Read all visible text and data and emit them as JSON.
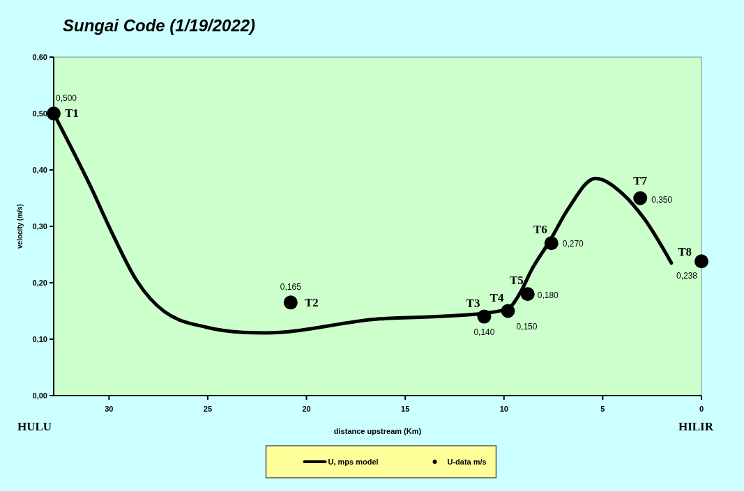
{
  "chart_data": {
    "type": "scatter",
    "title": "Sungai Code (1/19/2022)",
    "xlabel": "distance upstream (Km)",
    "ylabel": "velocity (m/s)",
    "xlim": [
      32.8,
      0
    ],
    "xticks": [
      30,
      25,
      20,
      15,
      10,
      5,
      0
    ],
    "ylim": [
      0,
      0.6
    ],
    "yticks": [
      {
        "value": 0,
        "label": "0,00"
      },
      {
        "value": 0.1,
        "label": "0,10"
      },
      {
        "value": 0.2,
        "label": "0,20"
      },
      {
        "value": 0.3,
        "label": "0,30"
      },
      {
        "value": 0.4,
        "label": "0,40"
      },
      {
        "value": 0.5,
        "label": "0,50"
      },
      {
        "value": 0.6,
        "label": "0,60"
      }
    ],
    "grid": false,
    "legend": "bottom",
    "series": [
      {
        "name": "U, mps model",
        "type": "line",
        "color": "#000000",
        "line_style": "solid",
        "x": [
          32.8,
          30.95,
          29.8,
          28.6,
          27.2,
          25.05,
          23.2,
          22.1,
          16.3,
          12.9,
          11.0,
          9.8,
          9.2,
          8.6,
          7.7,
          6.75,
          5.37,
          4.0,
          2.93,
          1.52
        ],
        "values": [
          0.5,
          0.372,
          0.285,
          0.204,
          0.149,
          0.121,
          0.112,
          0.111,
          0.136,
          0.141,
          0.146,
          0.154,
          0.181,
          0.223,
          0.273,
          0.331,
          0.385,
          0.358,
          0.315,
          0.235
        ]
      },
      {
        "name": "U-data m/s",
        "color": "#000000",
        "marker": "circle",
        "x": [
          32.8,
          20.8,
          11.0,
          9.8,
          8.8,
          7.6,
          3.1,
          0
        ],
        "values": [
          0.5,
          0.165,
          0.14,
          0.15,
          0.18,
          0.27,
          0.35,
          0.238
        ],
        "value_labels": [
          "0,500",
          "0,165",
          "0,140",
          "0,150",
          "0,180",
          "0,270",
          "0,350",
          "0,238"
        ]
      }
    ],
    "annotations": [
      {
        "text": "T1",
        "x": 32.8,
        "y": 0.5
      },
      {
        "text": "T2",
        "x": 20.8,
        "y": 0.165
      },
      {
        "text": "T3",
        "x": 11.0,
        "y": 0.14
      },
      {
        "text": "T4",
        "x": 9.8,
        "y": 0.15
      },
      {
        "text": "T5",
        "x": 8.8,
        "y": 0.18
      },
      {
        "text": "T6",
        "x": 7.6,
        "y": 0.27
      },
      {
        "text": "T7",
        "x": 3.1,
        "y": 0.35
      },
      {
        "text": "T8",
        "x": 0,
        "y": 0.238
      },
      "HULU",
      "HILIR"
    ]
  }
}
